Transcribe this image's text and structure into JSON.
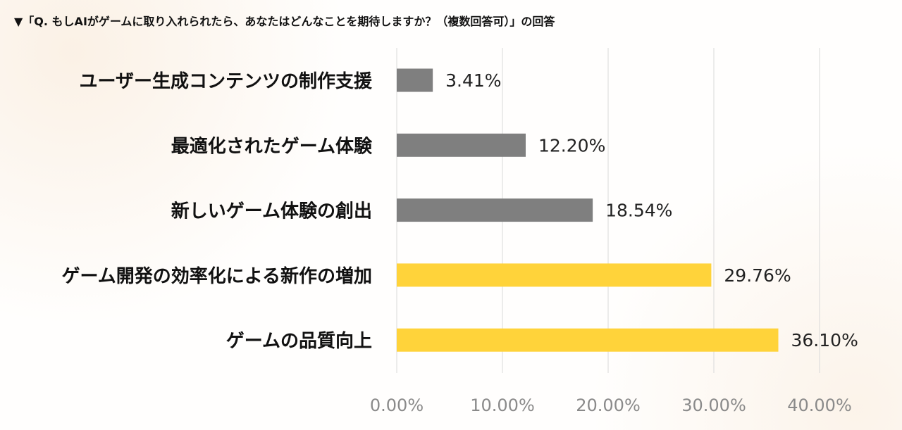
{
  "header": {
    "title": "▼「Q. もしAIがゲームに取り入れられたら、あなたはどんなことを期待しますか？（複数回答可）」の回答"
  },
  "colors": {
    "gray_bar": "#7f7f7f",
    "yellow_bar": "#ffd33a",
    "grid": "#d9d9d9",
    "tick_text": "#8a8a8a",
    "label_text": "#111111",
    "value_text": "#222222"
  },
  "chart_data": {
    "type": "bar",
    "orientation": "horizontal",
    "categories": [
      "ユーザー生成コンテンツの制作支援",
      "最適化されたゲーム体験",
      "新しいゲーム体験の創出",
      "ゲーム開発の効率化による新作の増加",
      "ゲームの品質向上"
    ],
    "values": [
      3.41,
      12.2,
      18.54,
      29.76,
      36.1
    ],
    "value_labels": [
      "3.41%",
      "12.20%",
      "18.54%",
      "29.76%",
      "36.10%"
    ],
    "highlight": [
      false,
      false,
      false,
      true,
      true
    ],
    "x_ticks": [
      0,
      10,
      20,
      30,
      40
    ],
    "x_tick_labels": [
      "0.00%",
      "10.00%",
      "20.00%",
      "30.00%",
      "40.00%"
    ],
    "xlim": [
      0,
      40
    ],
    "grid": true
  }
}
